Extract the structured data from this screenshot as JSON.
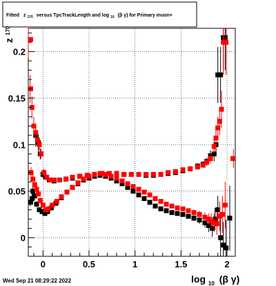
{
  "title": {
    "prefix": "Fitted",
    "z": "z",
    "z_sub": "170",
    "middle": "versus TpcTrackLength and log",
    "log_sub": "10",
    "suffix": "(β γ) for Primary muon+"
  },
  "axes": {
    "ylabel_main": "z",
    "ylabel_sub": "170",
    "xlabel_main": "log",
    "xlabel_sub": "10",
    "xlabel_suffix": "(β γ)"
  },
  "timestamp": "Wed Sep 21 08:29:22 2022",
  "colors": {
    "black_series": "#000000",
    "red_series": "#ff0000",
    "grid": "#000000"
  },
  "chart_data": {
    "type": "scatter",
    "xlim": [
      -0.16,
      2.09
    ],
    "ylim": [
      -0.02,
      0.225
    ],
    "x_ticks": [
      {
        "value": 0,
        "label": "0"
      },
      {
        "value": 0.5,
        "label": "0.5"
      },
      {
        "value": 1,
        "label": "1"
      },
      {
        "value": 1.5,
        "label": "1.5"
      },
      {
        "value": 2,
        "label": "2"
      }
    ],
    "y_ticks": [
      {
        "value": 0,
        "label": "0"
      },
      {
        "value": 0.05,
        "label": "0.05"
      },
      {
        "value": 0.1,
        "label": "0.1"
      },
      {
        "value": 0.15,
        "label": "0.15"
      },
      {
        "value": 0.2,
        "label": "0.2"
      }
    ],
    "grid": true,
    "marker": "square",
    "series": [
      {
        "key": "black_upper",
        "color": "#000000",
        "points": [
          [
            -0.14,
            0.038
          ],
          [
            -0.12,
            0.042
          ],
          [
            -0.08,
            0.11
          ],
          [
            -0.05,
            0.102
          ],
          [
            -0.03,
            0.09
          ],
          [
            0.0,
            0.068
          ],
          [
            0.03,
            0.065
          ],
          [
            0.07,
            0.062
          ],
          [
            0.12,
            0.061
          ],
          [
            0.18,
            0.062
          ],
          [
            0.25,
            0.063
          ],
          [
            0.32,
            0.064
          ],
          [
            0.4,
            0.066
          ],
          [
            0.48,
            0.067
          ],
          [
            0.56,
            0.068
          ],
          [
            0.64,
            0.069
          ],
          [
            0.72,
            0.069
          ],
          [
            0.8,
            0.069
          ],
          [
            0.88,
            0.068
          ],
          [
            0.96,
            0.068
          ],
          [
            1.04,
            0.068
          ],
          [
            1.12,
            0.067
          ],
          [
            1.2,
            0.067
          ],
          [
            1.28,
            0.068
          ],
          [
            1.36,
            0.069
          ],
          [
            1.44,
            0.07
          ],
          [
            1.52,
            0.072
          ],
          [
            1.6,
            0.074
          ],
          [
            1.68,
            0.077
          ],
          [
            1.74,
            0.079
          ],
          [
            1.78,
            0.082
          ],
          [
            1.82,
            0.088
          ],
          [
            1.86,
            0.09
          ],
          [
            1.88,
            0.1
          ],
          [
            1.9,
            0.175
          ],
          [
            1.93,
            0.175
          ],
          [
            1.96,
            0.215
          ],
          [
            1.98,
            0.215
          ]
        ],
        "errors": [
          0.004,
          0.006,
          0.012,
          0.009,
          0.006,
          0.004,
          0.003,
          0.002,
          0.002,
          0.002,
          0.002,
          0.002,
          0.002,
          0.002,
          0.002,
          0.002,
          0.002,
          0.002,
          0.002,
          0.002,
          0.002,
          0.002,
          0.002,
          0.002,
          0.002,
          0.002,
          0.002,
          0.002,
          0.003,
          0.003,
          0.004,
          0.006,
          0.008,
          0.012,
          0.03,
          0.03,
          0.035,
          0.035
        ]
      },
      {
        "key": "black_lower",
        "color": "#000000",
        "points": [
          [
            -0.11,
            0.05
          ],
          [
            -0.09,
            0.045
          ],
          [
            -0.07,
            0.036
          ],
          [
            -0.04,
            0.03
          ],
          [
            -0.01,
            0.028
          ],
          [
            0.02,
            0.026
          ],
          [
            0.05,
            0.028
          ],
          [
            0.09,
            0.032
          ],
          [
            0.14,
            0.037
          ],
          [
            0.2,
            0.043
          ],
          [
            0.26,
            0.049
          ],
          [
            0.32,
            0.054
          ],
          [
            0.38,
            0.058
          ],
          [
            0.44,
            0.062
          ],
          [
            0.5,
            0.064
          ],
          [
            0.56,
            0.066
          ],
          [
            0.62,
            0.067
          ],
          [
            0.68,
            0.066
          ],
          [
            0.74,
            0.064
          ],
          [
            0.8,
            0.061
          ],
          [
            0.86,
            0.058
          ],
          [
            0.92,
            0.054
          ],
          [
            0.98,
            0.05
          ],
          [
            1.04,
            0.046
          ],
          [
            1.1,
            0.042
          ],
          [
            1.16,
            0.038
          ],
          [
            1.22,
            0.034
          ],
          [
            1.28,
            0.031
          ],
          [
            1.34,
            0.029
          ],
          [
            1.4,
            0.027
          ],
          [
            1.46,
            0.026
          ],
          [
            1.52,
            0.025
          ],
          [
            1.58,
            0.023
          ],
          [
            1.64,
            0.021
          ],
          [
            1.7,
            0.019
          ],
          [
            1.76,
            0.016
          ],
          [
            1.8,
            0.013
          ],
          [
            1.84,
            0.01
          ],
          [
            1.87,
            0.02
          ],
          [
            1.9,
            0.03
          ],
          [
            1.93,
            0.0
          ],
          [
            1.96,
            -0.008
          ],
          [
            1.99,
            -0.011
          ],
          [
            2.03,
            0.021
          ]
        ],
        "errors": [
          0.005,
          0.004,
          0.003,
          0.002,
          0.002,
          0.002,
          0.002,
          0.002,
          0.002,
          0.002,
          0.002,
          0.002,
          0.002,
          0.002,
          0.002,
          0.002,
          0.002,
          0.002,
          0.002,
          0.002,
          0.002,
          0.002,
          0.002,
          0.002,
          0.002,
          0.002,
          0.002,
          0.002,
          0.002,
          0.002,
          0.002,
          0.002,
          0.002,
          0.003,
          0.004,
          0.005,
          0.007,
          0.009,
          0.012,
          0.015,
          0.02,
          0.025,
          0.03,
          0.035
        ]
      },
      {
        "key": "red_upper",
        "color": "#ff0000",
        "points": [
          [
            -0.16,
            0.213
          ],
          [
            -0.14,
            0.16
          ],
          [
            -0.12,
            0.14
          ],
          [
            -0.1,
            0.12
          ],
          [
            -0.08,
            0.113
          ],
          [
            -0.06,
            0.105
          ],
          [
            -0.04,
            0.1
          ],
          [
            -0.02,
            0.09
          ],
          [
            0.01,
            0.07
          ],
          [
            0.04,
            0.065
          ],
          [
            0.08,
            0.062
          ],
          [
            0.12,
            0.062
          ],
          [
            0.18,
            0.062
          ],
          [
            0.25,
            0.063
          ],
          [
            0.32,
            0.065
          ],
          [
            0.4,
            0.066
          ],
          [
            0.48,
            0.067
          ],
          [
            0.56,
            0.068
          ],
          [
            0.64,
            0.069
          ],
          [
            0.72,
            0.069
          ],
          [
            0.8,
            0.069
          ],
          [
            0.88,
            0.068
          ],
          [
            0.96,
            0.068
          ],
          [
            1.04,
            0.068
          ],
          [
            1.12,
            0.068
          ],
          [
            1.2,
            0.068
          ],
          [
            1.28,
            0.068
          ],
          [
            1.36,
            0.07
          ],
          [
            1.44,
            0.071
          ],
          [
            1.52,
            0.073
          ],
          [
            1.6,
            0.074
          ],
          [
            1.68,
            0.076
          ],
          [
            1.74,
            0.078
          ],
          [
            1.78,
            0.081
          ],
          [
            1.82,
            0.085
          ],
          [
            1.86,
            0.098
          ],
          [
            1.88,
            0.107
          ],
          [
            1.9,
            0.118
          ],
          [
            1.92,
            0.125
          ],
          [
            1.94,
            0.138
          ],
          [
            1.96,
            0.21
          ],
          [
            1.99,
            0.21
          ],
          [
            2.07,
            0.085
          ]
        ],
        "errors": [
          0.02,
          0.015,
          0.012,
          0.01,
          0.009,
          0.007,
          0.006,
          0.005,
          0.004,
          0.003,
          0.002,
          0.002,
          0.002,
          0.002,
          0.002,
          0.002,
          0.002,
          0.002,
          0.002,
          0.002,
          0.002,
          0.002,
          0.002,
          0.002,
          0.002,
          0.002,
          0.002,
          0.002,
          0.002,
          0.002,
          0.002,
          0.003,
          0.003,
          0.004,
          0.005,
          0.007,
          0.009,
          0.012,
          0.015,
          0.02,
          0.035,
          0.035,
          0.01
        ]
      },
      {
        "key": "red_lower",
        "color": "#ff0000",
        "points": [
          [
            -0.13,
            0.07
          ],
          [
            -0.11,
            0.063
          ],
          [
            -0.09,
            0.057
          ],
          [
            -0.07,
            0.052
          ],
          [
            -0.05,
            0.047
          ],
          [
            -0.03,
            0.04
          ],
          [
            0.0,
            0.035
          ],
          [
            0.03,
            0.03
          ],
          [
            0.06,
            0.031
          ],
          [
            0.1,
            0.035
          ],
          [
            0.15,
            0.039
          ],
          [
            0.2,
            0.044
          ],
          [
            0.26,
            0.049
          ],
          [
            0.32,
            0.054
          ],
          [
            0.38,
            0.059
          ],
          [
            0.44,
            0.063
          ],
          [
            0.5,
            0.066
          ],
          [
            0.56,
            0.068
          ],
          [
            0.62,
            0.069
          ],
          [
            0.68,
            0.068
          ],
          [
            0.74,
            0.066
          ],
          [
            0.8,
            0.064
          ],
          [
            0.86,
            0.061
          ],
          [
            0.92,
            0.058
          ],
          [
            0.98,
            0.055
          ],
          [
            1.04,
            0.052
          ],
          [
            1.1,
            0.049
          ],
          [
            1.16,
            0.046
          ],
          [
            1.22,
            0.042
          ],
          [
            1.28,
            0.039
          ],
          [
            1.34,
            0.036
          ],
          [
            1.4,
            0.034
          ],
          [
            1.46,
            0.032
          ],
          [
            1.52,
            0.031
          ],
          [
            1.58,
            0.029
          ],
          [
            1.64,
            0.027
          ],
          [
            1.7,
            0.025
          ],
          [
            1.76,
            0.022
          ],
          [
            1.8,
            0.02
          ],
          [
            1.83,
            0.018
          ],
          [
            1.86,
            0.016
          ],
          [
            1.89,
            0.015
          ],
          [
            1.92,
            0.023
          ],
          [
            1.95,
            0.025
          ],
          [
            1.98,
            0.035
          ]
        ],
        "errors": [
          0.006,
          0.005,
          0.004,
          0.004,
          0.003,
          0.003,
          0.002,
          0.002,
          0.002,
          0.002,
          0.002,
          0.002,
          0.002,
          0.002,
          0.002,
          0.002,
          0.002,
          0.002,
          0.002,
          0.002,
          0.002,
          0.002,
          0.002,
          0.002,
          0.002,
          0.002,
          0.002,
          0.002,
          0.002,
          0.002,
          0.002,
          0.002,
          0.002,
          0.002,
          0.002,
          0.003,
          0.004,
          0.005,
          0.006,
          0.008,
          0.01,
          0.012,
          0.016,
          0.02,
          0.025
        ]
      }
    ]
  }
}
